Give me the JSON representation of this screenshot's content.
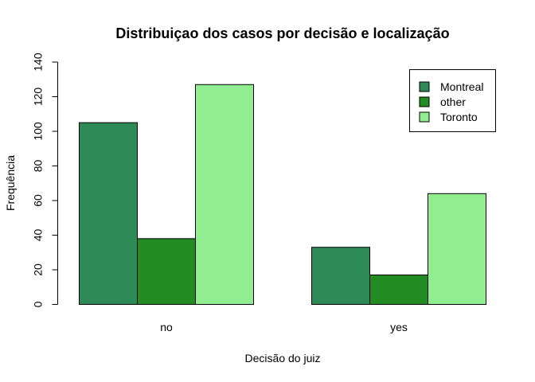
{
  "chart_data": {
    "type": "bar",
    "title": "Distribuiçao dos casos por decisão e localização",
    "xlabel": "Decisão do juiz",
    "ylabel": "Frequência",
    "categories": [
      "no",
      "yes"
    ],
    "series": [
      {
        "name": "Montreal",
        "values": [
          105,
          33
        ],
        "color": "#2e8b57"
      },
      {
        "name": "other",
        "values": [
          38,
          17
        ],
        "color": "#228b22"
      },
      {
        "name": "Toronto",
        "values": [
          127,
          64
        ],
        "color": "#90ee90"
      }
    ],
    "ylim": [
      0,
      140
    ],
    "yticks": [
      "0",
      "20",
      "40",
      "60",
      "80",
      "100",
      "120",
      "140"
    ],
    "grid": false,
    "legend_position": "top-right",
    "bar_mode": "grouped"
  }
}
